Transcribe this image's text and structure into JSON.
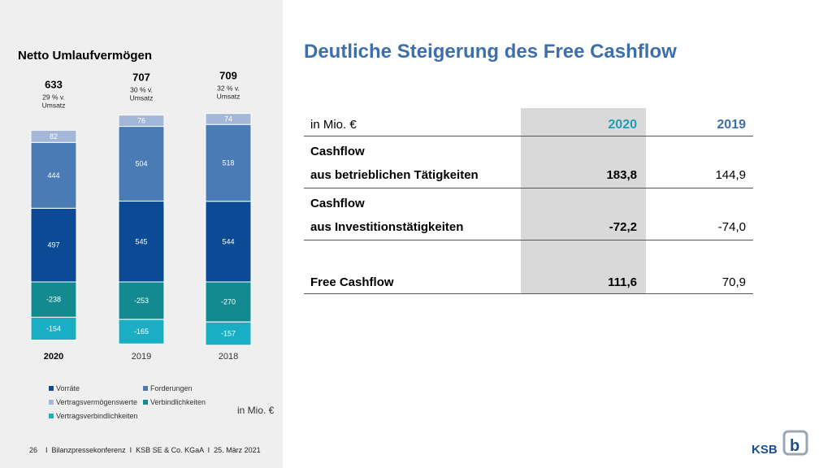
{
  "left": {
    "title": "Netto Umlaufvermögen",
    "unit": "in Mio. €",
    "footer": "26    I  Bilanzpressekonferenz  I  KSB SE & Co. KGaA  I  25. März 2021"
  },
  "chart_data": {
    "type": "bar",
    "stacked": true,
    "categories": [
      "2020",
      "2019",
      "2018"
    ],
    "totals": [
      "633",
      "707",
      "709"
    ],
    "total_notes": [
      "29 % v. Umsatz",
      "30 % v. Umsatz",
      "32 % v. Umsatz"
    ],
    "series": [
      {
        "name": "Vertragsvermögenswerte",
        "values": [
          82,
          76,
          74
        ],
        "color": "#a3b7d8"
      },
      {
        "name": "Forderungen",
        "values": [
          444,
          504,
          518
        ],
        "color": "#4a7bb4"
      },
      {
        "name": "Vorräte",
        "values": [
          497,
          545,
          544
        ],
        "color": "#0b4a94"
      },
      {
        "name": "Verbindlichkeiten",
        "values": [
          -238,
          -253,
          -270
        ],
        "color": "#128a8f"
      },
      {
        "name": "Vertragsverbindlichkeiten",
        "values": [
          -154,
          -165,
          -157
        ],
        "color": "#1aaec4"
      }
    ],
    "legend": [
      {
        "label": "Vorräte",
        "color": "#0b4a94"
      },
      {
        "label": "Forderungen",
        "color": "#4a7bb4"
      },
      {
        "label": "Vertragsvermögenswerte",
        "color": "#a3b7d8"
      },
      {
        "label": "Verbindlichkeiten",
        "color": "#128a8f"
      },
      {
        "label": "Vertragsverbindlichkeiten",
        "color": "#1aaec4"
      }
    ]
  },
  "right": {
    "heading": "Deutliche Steigerung des Free Cashflow",
    "table": {
      "unit_label": "in Mio. €",
      "col_2020": "2020",
      "col_2019": "2019",
      "row1_line1": "Cashflow",
      "row1_line2": "aus betrieblichen Tätigkeiten",
      "row1_2020": "183,8",
      "row1_2019": "144,9",
      "row2_line1": "Cashflow",
      "row2_line2": "aus Investitionstätigkeiten",
      "row2_2020": "-72,2",
      "row2_2019": "-74,0",
      "row3_label": "Free Cashflow",
      "row3_2020": "111,6",
      "row3_2019": "70,9"
    },
    "colors": {
      "accent_2020": "#1a9fb3",
      "accent_2019": "#3e6fa8",
      "heading": "#3e6fa8"
    }
  },
  "logo": {
    "text": "KSB"
  }
}
